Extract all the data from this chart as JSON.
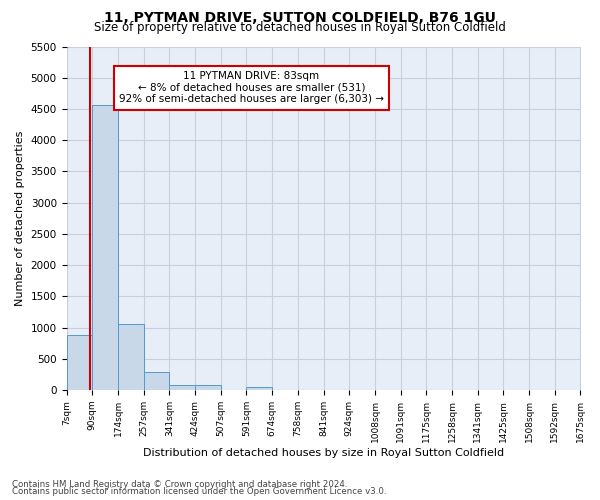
{
  "title": "11, PYTMAN DRIVE, SUTTON COLDFIELD, B76 1GU",
  "subtitle": "Size of property relative to detached houses in Royal Sutton Coldfield",
  "xlabel": "Distribution of detached houses by size in Royal Sutton Coldfield",
  "ylabel": "Number of detached properties",
  "footnote1": "Contains HM Land Registry data © Crown copyright and database right 2024.",
  "footnote2": "Contains public sector information licensed under the Open Government Licence v3.0.",
  "annotation_line1": "11 PYTMAN DRIVE: 83sqm",
  "annotation_line2": "← 8% of detached houses are smaller (531)",
  "annotation_line3": "92% of semi-detached houses are larger (6,303) →",
  "bar_color": "#c8d8e8",
  "bar_edge_color": "#5599cc",
  "red_line_x": 83,
  "bin_edges": [
    7,
    90,
    174,
    257,
    341,
    424,
    507,
    591,
    674,
    758,
    841,
    924,
    1008,
    1091,
    1175,
    1258,
    1341,
    1425,
    1508,
    1592,
    1675
  ],
  "bin_counts": [
    880,
    4560,
    1060,
    290,
    80,
    75,
    0,
    55,
    0,
    0,
    0,
    0,
    0,
    0,
    0,
    0,
    0,
    0,
    0,
    0
  ],
  "ylim": [
    0,
    5500
  ],
  "yticks": [
    0,
    500,
    1000,
    1500,
    2000,
    2500,
    3000,
    3500,
    4000,
    4500,
    5000,
    5500
  ],
  "tick_labels": [
    "7sqm",
    "90sqm",
    "174sqm",
    "257sqm",
    "341sqm",
    "424sqm",
    "507sqm",
    "591sqm",
    "674sqm",
    "758sqm",
    "841sqm",
    "924sqm",
    "1008sqm",
    "1091sqm",
    "1175sqm",
    "1258sqm",
    "1341sqm",
    "1425sqm",
    "1508sqm",
    "1592sqm",
    "1675sqm"
  ],
  "grid_color": "#c8cfe0",
  "bg_color": "#e8eef8",
  "annotation_box_color": "#ffffff",
  "annotation_box_edge": "#cc0000",
  "red_line_color": "#cc0000",
  "title_fontsize": 10,
  "subtitle_fontsize": 8.5
}
